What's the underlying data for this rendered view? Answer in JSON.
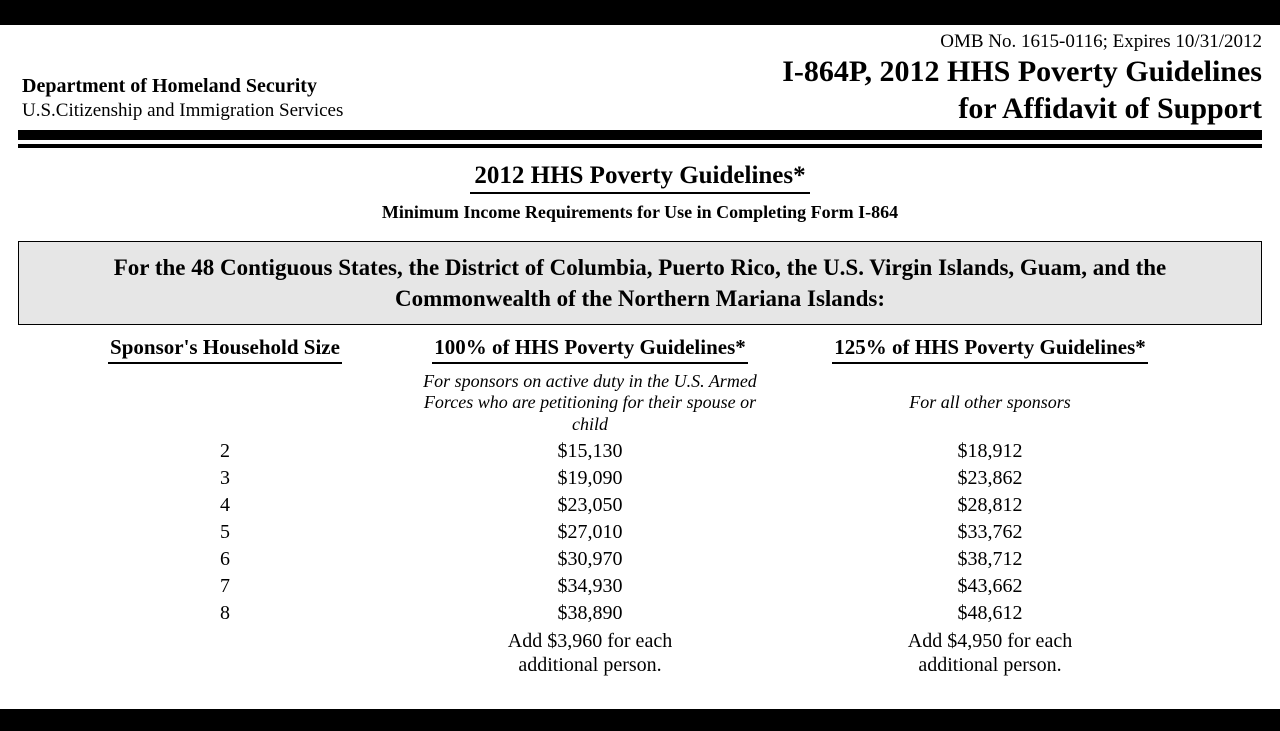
{
  "header": {
    "department": "Department of Homeland Security",
    "agency": "U.S.Citizenship and Immigration Services",
    "omb": "OMB No. 1615-0116; Expires 10/31/2012",
    "title_line1": "I-864P, 2012 HHS Poverty Guidelines",
    "title_line2": "for Affidavit of Support"
  },
  "section": {
    "main_title": "2012 HHS Poverty Guidelines*",
    "subtitle": "Minimum Income Requirements for Use in Completing Form I-864"
  },
  "region_box": "For the 48 Contiguous States, the District of Columbia, Puerto Rico, the U.S. Virgin Islands, Guam, and the Commonwealth of the Northern Mariana Islands:",
  "table": {
    "columns": [
      {
        "header": "Sponsor's Household Size",
        "note": ""
      },
      {
        "header": "100% of HHS Poverty Guidelines*",
        "note": "For sponsors on active duty in the U.S. Armed Forces who are petitioning for their spouse or child"
      },
      {
        "header": "125% of HHS Poverty Guidelines*",
        "note": "For all other sponsors"
      }
    ],
    "rows": [
      {
        "size": "2",
        "c100": "$15,130",
        "c125": "$18,912"
      },
      {
        "size": "3",
        "c100": "$19,090",
        "c125": "$23,862"
      },
      {
        "size": "4",
        "c100": "$23,050",
        "c125": "$28,812"
      },
      {
        "size": "5",
        "c100": "$27,010",
        "c125": "$33,762"
      },
      {
        "size": "6",
        "c100": "$30,970",
        "c125": "$38,712"
      },
      {
        "size": "7",
        "c100": "$34,930",
        "c125": "$43,662"
      },
      {
        "size": "8",
        "c100": "$38,890",
        "c125": "$48,612"
      }
    ],
    "footer": {
      "c100_line1": "Add $3,960 for each",
      "c100_line2": "additional person.",
      "c125_line1": "Add $4,950 for each",
      "c125_line2": "additional person."
    }
  }
}
